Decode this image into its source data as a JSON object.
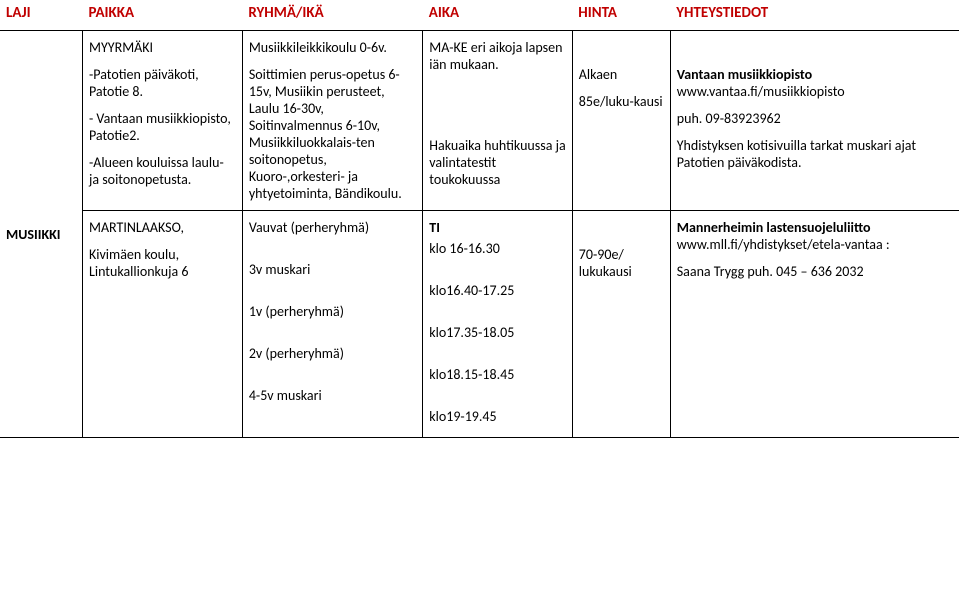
{
  "headers": {
    "laji": "LAJI",
    "paikka": "PAIKKA",
    "ryhma": "RYHMÄ/IKÄ",
    "aika": "AIKA",
    "hinta": "HINTA",
    "yhteys": "YHTEYSTIEDOT"
  },
  "row1": {
    "laji": "MUSIIKKI",
    "paikka1": "MYYRMÄKI",
    "paikka2": "-Patotien päiväkoti, Patotie 8.",
    "paikka3": "-  Vantaan musiikkiopisto, Patotie2.",
    "paikka4": "-Alueen kouluissa laulu- ja soitonopetusta.",
    "ryhma1": "Musiikkileikkikoulu 0-6v.",
    "ryhma2": "Soittimien perus-opetus 6-15v, Musiikin perusteet, Laulu 16-30v, Soitinvalmennus 6-10v, Musiikkiluokkalais-ten soitonopetus, Kuoro-,orkesteri- ja yhtyetoiminta, Bändikoulu.",
    "aika1": "MA-KE eri aikoja lapsen iän mukaan.",
    "aika2": "Hakuaika huhtikuussa ja valintatestit toukokuussa",
    "hinta1": "Alkaen",
    "hinta2": "85e/luku-kausi",
    "yht1": "Vantaan musiikkiopisto",
    "yht1b": "www.vantaa.fi/musiikkiopisto",
    "yht2": "puh. 09-83923962",
    "yht3": "Yhdistyksen kotisivuilla tarkat muskari ajat Patotien päiväkodista."
  },
  "row2": {
    "paikka1": "MARTINLAAKSO,",
    "paikka2": "Kivimäen koulu, Lintukallionkuja 6",
    "ryhma1": "Vauvat (perheryhmä)",
    "ryhma2": "3v muskari",
    "ryhma3": "1v (perheryhmä)",
    "ryhma4": "2v (perheryhmä)",
    "ryhma5": "4-5v muskari",
    "aika0": "TI",
    "aika1": "klo 16-16.30",
    "aika2": "klo16.40-17.25",
    "aika3": "klo17.35-18.05",
    "aika4": "klo18.15-18.45",
    "aika5": "klo19-19.45",
    "hinta": "70-90e/ lukukausi",
    "yht1a": "Mannerheimin  lastensuojeluliitto",
    "yht1b": "www.mll.fi/yhdistykset/etela-vantaa",
    "yht1c": " :",
    "yht2": "Saana Trygg  puh. 045 – 636 2032"
  }
}
